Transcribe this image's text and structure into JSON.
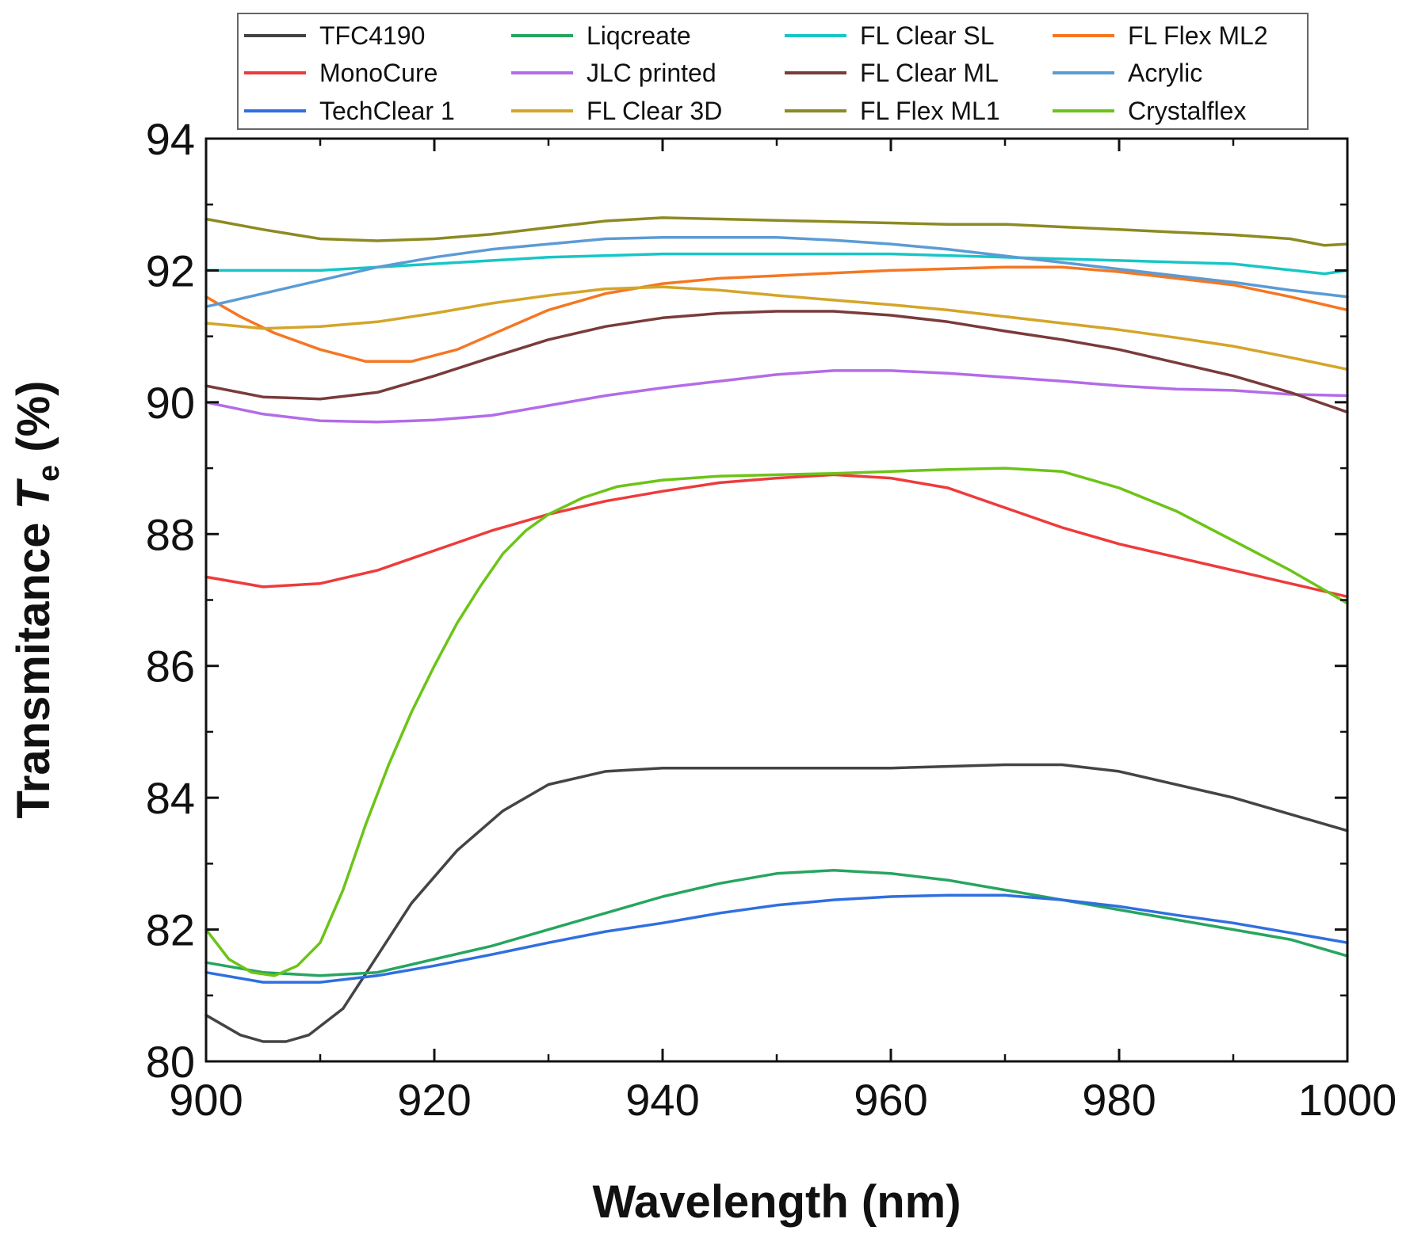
{
  "chart_data": {
    "type": "line",
    "xlabel": "Wavelength (nm)",
    "ylabel_main": "Transmitance ",
    "ylabel_var": "T",
    "ylabel_sub": "e",
    "ylabel_unit": " (%)",
    "xlim": [
      900,
      1000
    ],
    "ylim": [
      80,
      94
    ],
    "xticks": [
      900,
      920,
      940,
      960,
      980,
      1000
    ],
    "yticks": [
      80,
      82,
      84,
      86,
      88,
      90,
      92,
      94
    ],
    "legend_position": "top",
    "grid": false,
    "series": [
      {
        "name": "TFC4190",
        "color": "#444444",
        "x": [
          900,
          903,
          905,
          907,
          909,
          912,
          915,
          918,
          922,
          926,
          930,
          935,
          940,
          950,
          960,
          970,
          975,
          980,
          990,
          1000
        ],
        "y": [
          80.7,
          80.4,
          80.3,
          80.3,
          80.4,
          80.8,
          81.6,
          82.4,
          83.2,
          83.8,
          84.2,
          84.4,
          84.45,
          84.45,
          84.45,
          84.5,
          84.5,
          84.4,
          84.0,
          83.5
        ]
      },
      {
        "name": "Liqcreate",
        "color": "#27a560",
        "x": [
          900,
          905,
          910,
          915,
          920,
          925,
          930,
          935,
          940,
          945,
          950,
          955,
          960,
          965,
          970,
          975,
          980,
          985,
          990,
          995,
          1000
        ],
        "y": [
          81.5,
          81.35,
          81.3,
          81.35,
          81.55,
          81.75,
          82.0,
          82.25,
          82.5,
          82.7,
          82.85,
          82.9,
          82.85,
          82.75,
          82.6,
          82.45,
          82.3,
          82.15,
          82.0,
          81.85,
          81.6
        ]
      },
      {
        "name": "FL Clear SL",
        "color": "#17c6c6",
        "x": [
          900,
          910,
          920,
          930,
          940,
          950,
          960,
          970,
          980,
          990,
          998,
          1000
        ],
        "y": [
          92.0,
          92.0,
          92.1,
          92.2,
          92.25,
          92.25,
          92.25,
          92.2,
          92.15,
          92.1,
          91.95,
          92.0
        ]
      },
      {
        "name": "FL Flex ML2",
        "color": "#f57722",
        "x": [
          900,
          903,
          906,
          910,
          914,
          918,
          922,
          926,
          930,
          935,
          940,
          945,
          950,
          960,
          970,
          975,
          980,
          985,
          990,
          995,
          1000
        ],
        "y": [
          91.6,
          91.3,
          91.05,
          90.8,
          90.62,
          90.62,
          90.8,
          91.1,
          91.4,
          91.65,
          91.8,
          91.88,
          91.92,
          92.0,
          92.05,
          92.05,
          91.98,
          91.88,
          91.78,
          91.6,
          91.4
        ]
      },
      {
        "name": "MonoCure",
        "color": "#ee3b3b",
        "x": [
          900,
          905,
          910,
          915,
          920,
          925,
          930,
          935,
          940,
          945,
          950,
          955,
          960,
          965,
          970,
          975,
          980,
          985,
          990,
          995,
          1000
        ],
        "y": [
          87.35,
          87.2,
          87.25,
          87.45,
          87.75,
          88.05,
          88.3,
          88.5,
          88.65,
          88.78,
          88.85,
          88.9,
          88.85,
          88.7,
          88.4,
          88.1,
          87.85,
          87.65,
          87.45,
          87.25,
          87.05
        ]
      },
      {
        "name": "JLC printed",
        "color": "#b36ce8",
        "x": [
          900,
          905,
          910,
          915,
          920,
          925,
          930,
          935,
          940,
          945,
          950,
          955,
          960,
          965,
          970,
          975,
          980,
          985,
          990,
          995,
          1000
        ],
        "y": [
          90.0,
          89.82,
          89.72,
          89.7,
          89.73,
          89.8,
          89.95,
          90.1,
          90.22,
          90.32,
          90.42,
          90.48,
          90.48,
          90.44,
          90.38,
          90.32,
          90.25,
          90.2,
          90.18,
          90.12,
          90.1
        ]
      },
      {
        "name": "FL Clear ML",
        "color": "#7a3b3b",
        "x": [
          900,
          905,
          910,
          915,
          920,
          925,
          930,
          935,
          940,
          945,
          950,
          955,
          960,
          965,
          970,
          975,
          980,
          985,
          990,
          995,
          1000
        ],
        "y": [
          90.25,
          90.08,
          90.05,
          90.15,
          90.4,
          90.68,
          90.95,
          91.15,
          91.28,
          91.35,
          91.38,
          91.38,
          91.32,
          91.22,
          91.08,
          90.95,
          90.8,
          90.6,
          90.4,
          90.15,
          89.85
        ]
      },
      {
        "name": "Acrylic",
        "color": "#5b9bd5",
        "x": [
          900,
          905,
          910,
          915,
          920,
          925,
          930,
          935,
          940,
          945,
          950,
          955,
          960,
          965,
          970,
          975,
          980,
          985,
          990,
          995,
          1000
        ],
        "y": [
          91.45,
          91.65,
          91.85,
          92.05,
          92.2,
          92.32,
          92.4,
          92.48,
          92.5,
          92.5,
          92.5,
          92.46,
          92.4,
          92.32,
          92.22,
          92.12,
          92.02,
          91.92,
          91.82,
          91.7,
          91.6
        ]
      },
      {
        "name": "TechClear 1",
        "color": "#2f6fe0",
        "x": [
          900,
          905,
          910,
          915,
          920,
          925,
          930,
          935,
          940,
          945,
          950,
          955,
          960,
          965,
          970,
          975,
          980,
          985,
          990,
          995,
          1000
        ],
        "y": [
          81.35,
          81.2,
          81.2,
          81.3,
          81.45,
          81.62,
          81.8,
          81.97,
          82.1,
          82.25,
          82.37,
          82.45,
          82.5,
          82.52,
          82.52,
          82.45,
          82.35,
          82.22,
          82.1,
          81.95,
          81.8
        ]
      },
      {
        "name": "FL Clear 3D",
        "color": "#d4a52a",
        "x": [
          900,
          905,
          910,
          915,
          920,
          925,
          930,
          935,
          940,
          945,
          950,
          955,
          960,
          965,
          970,
          975,
          980,
          985,
          990,
          995,
          1000
        ],
        "y": [
          91.2,
          91.12,
          91.15,
          91.22,
          91.35,
          91.5,
          91.62,
          91.72,
          91.75,
          91.7,
          91.62,
          91.55,
          91.48,
          91.4,
          91.3,
          91.2,
          91.1,
          90.98,
          90.85,
          90.68,
          90.5
        ]
      },
      {
        "name": "FL Flex ML1",
        "color": "#8c8a22",
        "x": [
          900,
          905,
          910,
          915,
          920,
          925,
          930,
          935,
          940,
          945,
          950,
          955,
          960,
          965,
          970,
          975,
          980,
          985,
          990,
          995,
          998,
          1000
        ],
        "y": [
          92.78,
          92.62,
          92.48,
          92.45,
          92.48,
          92.55,
          92.65,
          92.75,
          92.8,
          92.78,
          92.76,
          92.74,
          92.72,
          92.7,
          92.7,
          92.66,
          92.62,
          92.58,
          92.54,
          92.48,
          92.38,
          92.4
        ]
      },
      {
        "name": "Crystalflex",
        "color": "#6cc417",
        "x": [
          900,
          902,
          904,
          906,
          908,
          910,
          912,
          914,
          916,
          918,
          920,
          922,
          924,
          926,
          928,
          930,
          933,
          936,
          940,
          945,
          950,
          955,
          960,
          965,
          970,
          975,
          980,
          985,
          990,
          995,
          1000
        ],
        "y": [
          82.0,
          81.55,
          81.35,
          81.3,
          81.45,
          81.8,
          82.6,
          83.6,
          84.5,
          85.3,
          86.0,
          86.65,
          87.2,
          87.7,
          88.05,
          88.3,
          88.55,
          88.72,
          88.82,
          88.88,
          88.9,
          88.92,
          88.95,
          88.98,
          89.0,
          88.95,
          88.7,
          88.35,
          87.9,
          87.45,
          86.95
        ]
      }
    ]
  }
}
